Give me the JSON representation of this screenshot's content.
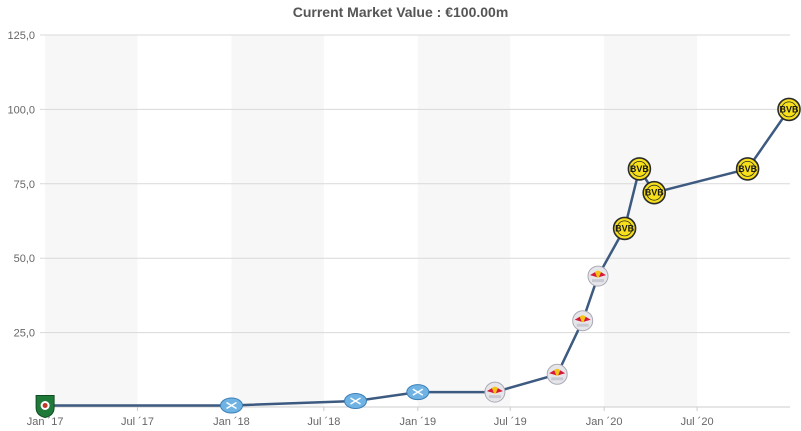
{
  "chart_data": {
    "type": "line",
    "title": "Current Market Value : €100.00m",
    "xlabel": "",
    "ylabel": "",
    "ylim": [
      0,
      125
    ],
    "y_ticks": [
      {
        "value": 25,
        "label": "25,0"
      },
      {
        "value": 50,
        "label": "50,0"
      },
      {
        "value": 75,
        "label": "75,0"
      },
      {
        "value": 100,
        "label": "100,0"
      },
      {
        "value": 125,
        "label": "125,0"
      }
    ],
    "x_range": [
      "2016-12-22",
      "2020-12-30"
    ],
    "x_ticks": [
      {
        "date": "2017-01-01",
        "label": "Jan ´17"
      },
      {
        "date": "2017-07-01",
        "label": "Jul ´17"
      },
      {
        "date": "2018-01-01",
        "label": "Jan ´18"
      },
      {
        "date": "2018-07-01",
        "label": "Jul ´18"
      },
      {
        "date": "2019-01-01",
        "label": "Jan ´19"
      },
      {
        "date": "2019-07-01",
        "label": "Jul ´19"
      },
      {
        "date": "2020-01-01",
        "label": "Jan ´20"
      },
      {
        "date": "2020-07-01",
        "label": "Jul ´20"
      }
    ],
    "grid": true,
    "colors": {
      "line": "#3d5a80",
      "grid": "#d9d9d9",
      "plot_band": "#f7f7f7",
      "axis_text": "#666666",
      "title": "#555555"
    },
    "series": [
      {
        "points": [
          {
            "date": "2017-01-01",
            "value": 0.5,
            "club_icon": "green-club-crest-icon"
          },
          {
            "date": "2018-01-01",
            "value": 0.5,
            "club_icon": "blue-club-crest-icon"
          },
          {
            "date": "2018-09-01",
            "value": 2,
            "club_icon": "blue-club-crest-icon"
          },
          {
            "date": "2019-01-01",
            "value": 5,
            "club_icon": "blue-club-crest-icon"
          },
          {
            "date": "2019-06-01",
            "value": 5,
            "club_icon": "red-bull-crest-icon"
          },
          {
            "date": "2019-10-01",
            "value": 11,
            "club_icon": "red-bull-crest-icon"
          },
          {
            "date": "2019-11-20",
            "value": 29,
            "club_icon": "red-bull-crest-icon"
          },
          {
            "date": "2019-12-20",
            "value": 44,
            "club_icon": "red-bull-crest-icon"
          },
          {
            "date": "2020-02-10",
            "value": 60,
            "club_icon": "bvb-crest-icon"
          },
          {
            "date": "2020-03-10",
            "value": 80,
            "club_icon": "bvb-crest-icon"
          },
          {
            "date": "2020-04-08",
            "value": 72,
            "club_icon": "bvb-crest-icon"
          },
          {
            "date": "2020-10-08",
            "value": 80,
            "club_icon": "bvb-crest-icon"
          },
          {
            "date": "2020-12-28",
            "value": 100,
            "club_icon": "bvb-crest-icon"
          }
        ]
      }
    ]
  }
}
